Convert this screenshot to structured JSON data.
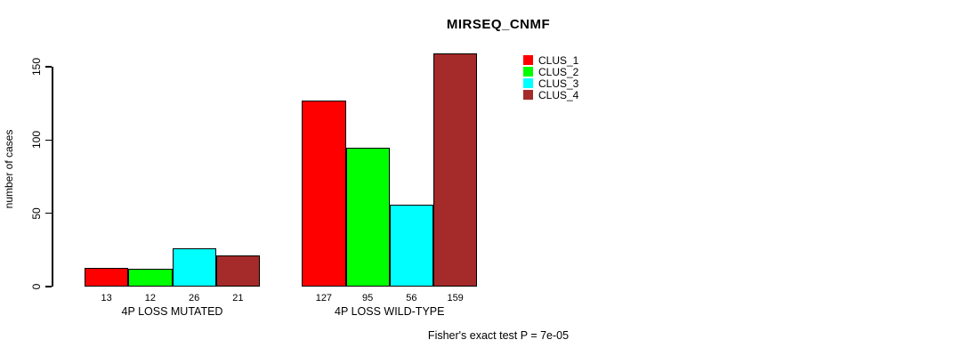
{
  "chart_data": {
    "type": "bar",
    "title": "MIRSEQ_CNMF",
    "xlabel": "",
    "ylabel": "number of cases",
    "categories": [
      "4P LOSS MUTATED",
      "4P LOSS WILD-TYPE"
    ],
    "series": [
      {
        "name": "CLUS_1",
        "color": "#FF0000",
        "values": [
          13,
          127
        ]
      },
      {
        "name": "CLUS_2",
        "color": "#00FF00",
        "values": [
          12,
          95
        ]
      },
      {
        "name": "CLUS_3",
        "color": "#00FFFF",
        "values": [
          26,
          56
        ]
      },
      {
        "name": "CLUS_4",
        "color": "#A52A2A",
        "values": [
          21,
          159
        ]
      }
    ],
    "value_labels": true,
    "yticks": [
      0,
      50,
      100,
      150
    ],
    "ylim": [
      0,
      150
    ],
    "grid": false,
    "legend_position": "top-right",
    "annotation": "Fisher's exact test P = 7e-05",
    "bar_border_color": "#000000",
    "background_color": "#FFFFFF"
  }
}
